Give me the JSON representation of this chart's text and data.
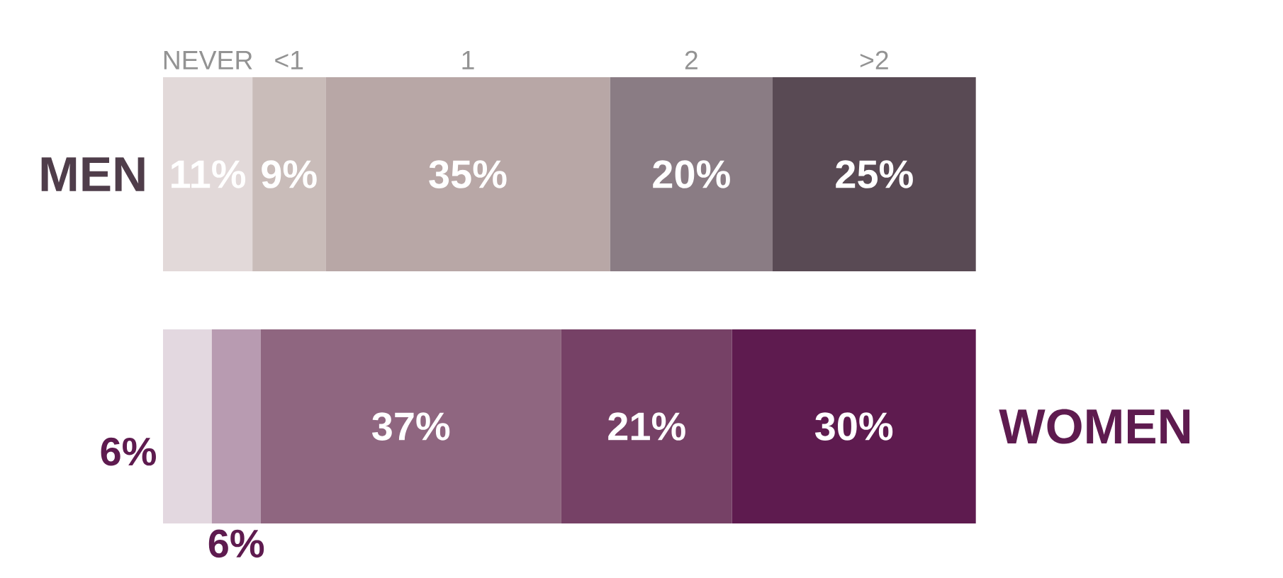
{
  "chart_data": {
    "type": "bar",
    "orientation": "horizontal",
    "stacked": true,
    "legend": "top",
    "categories": [
      "MEN",
      "WOMEN"
    ],
    "series": [
      {
        "name": "NEVER",
        "colors": [
          "#e2d9d9",
          "#e3d8e0"
        ],
        "values": [
          11,
          6
        ],
        "value_labels": [
          "11%",
          "6%"
        ]
      },
      {
        "name": "<1",
        "colors": [
          "#c9bcb9",
          "#b89bb1"
        ],
        "values": [
          9,
          6
        ],
        "value_labels": [
          "9%",
          "6%"
        ]
      },
      {
        "name": "1",
        "colors": [
          "#b8a7a6",
          "#8f6680"
        ],
        "values": [
          35,
          37
        ],
        "value_labels": [
          "35%",
          "37%"
        ]
      },
      {
        "name": "2",
        "colors": [
          "#8a7c84",
          "#764166"
        ],
        "values": [
          20,
          21
        ],
        "value_labels": [
          "20%",
          "21%"
        ]
      },
      {
        "name": ">2",
        "colors": [
          "#594a54",
          "#5e1b4f"
        ],
        "values": [
          25,
          30
        ],
        "value_labels": [
          "25%",
          "30%"
        ]
      }
    ]
  }
}
